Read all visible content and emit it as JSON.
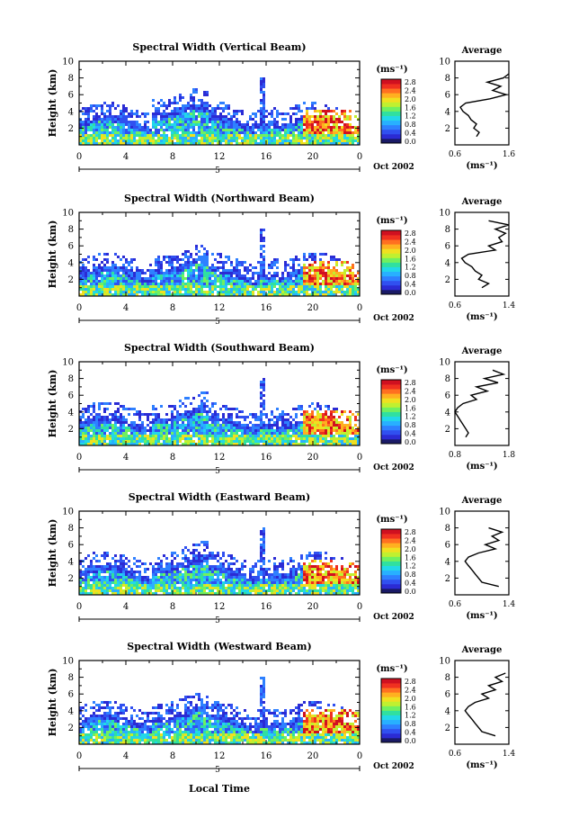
{
  "xlabel": "Local Time",
  "date_label": "Oct 2002",
  "day_marker": "5",
  "avg_title": "Average",
  "colorbar": {
    "unit": "(ms⁻¹)",
    "ticks": [
      "0.0",
      "0.4",
      "0.8",
      "1.2",
      "1.6",
      "2.0",
      "2.4",
      "2.8"
    ],
    "colors": [
      "#1a1a66",
      "#2b2bd4",
      "#3050f0",
      "#2e80ff",
      "#28b0ff",
      "#22d8e8",
      "#30e0a0",
      "#70f060",
      "#c0f030",
      "#f0e020",
      "#ffb020",
      "#ff7020",
      "#f03020",
      "#d01020"
    ]
  },
  "chart_data": [
    {
      "type": "heatmap",
      "title": "Spectral Width (Vertical Beam)",
      "ylabel": "Height (km)",
      "xticks": [
        "0",
        "4",
        "8",
        "12",
        "16",
        "20",
        "0"
      ],
      "yticks": [
        "2",
        "4",
        "6",
        "8",
        "10"
      ],
      "xlim": [
        0,
        24
      ],
      "ylim": [
        0,
        10
      ],
      "profile": {
        "xlabel": "(ms⁻¹)",
        "xticks": [
          "0.6",
          "1.6"
        ],
        "xlim": [
          0.6,
          1.6
        ],
        "yticks": [
          "2",
          "4",
          "6",
          "8",
          "10"
        ],
        "ylim": [
          0,
          10
        ],
        "heights": [
          1,
          1.5,
          2,
          2.5,
          3,
          3.5,
          4,
          4.5,
          5,
          5.5,
          6,
          6.5,
          7,
          7.5,
          8,
          8.5
        ],
        "values": [
          1.0,
          1.05,
          0.95,
          1.0,
          0.9,
          0.85,
          0.75,
          0.7,
          0.8,
          1.25,
          1.55,
          1.3,
          1.45,
          1.2,
          1.5,
          1.6
        ]
      }
    },
    {
      "type": "heatmap",
      "title": "Spectral Width (Northward Beam)",
      "ylabel": "Height (km)",
      "xticks": [
        "0",
        "4",
        "8",
        "12",
        "16",
        "20",
        "0"
      ],
      "yticks": [
        "2",
        "4",
        "6",
        "8",
        "10"
      ],
      "xlim": [
        0,
        24
      ],
      "ylim": [
        0,
        10
      ],
      "profile": {
        "xlabel": "(ms⁻¹)",
        "xticks": [
          "0.6",
          "1.4"
        ],
        "xlim": [
          0.6,
          1.4
        ],
        "yticks": [
          "2",
          "4",
          "6",
          "8",
          "10"
        ],
        "ylim": [
          0,
          10
        ],
        "heights": [
          1,
          1.5,
          2,
          2.5,
          3,
          3.5,
          4,
          4.5,
          5,
          5.5,
          6,
          6.5,
          7,
          7.5,
          8,
          8.5,
          9
        ],
        "values": [
          1.0,
          1.1,
          0.95,
          1.0,
          0.9,
          0.85,
          0.75,
          0.7,
          0.8,
          1.2,
          1.1,
          1.3,
          1.25,
          1.35,
          1.2,
          1.4,
          1.1
        ]
      }
    },
    {
      "type": "heatmap",
      "title": "Spectral Width (Southward Beam)",
      "ylabel": "Height (km)",
      "xticks": [
        "0",
        "4",
        "8",
        "12",
        "16",
        "20",
        "0"
      ],
      "yticks": [
        "2",
        "4",
        "6",
        "8",
        "10"
      ],
      "xlim": [
        0,
        24
      ],
      "ylim": [
        0,
        10
      ],
      "profile": {
        "xlabel": "(ms⁻¹)",
        "xticks": [
          "0.8",
          "1.8"
        ],
        "xlim": [
          0.8,
          1.8
        ],
        "yticks": [
          "2",
          "4",
          "6",
          "8",
          "10"
        ],
        "ylim": [
          0,
          10
        ],
        "heights": [
          1,
          1.5,
          2,
          2.5,
          3,
          3.5,
          4,
          4.5,
          5,
          5.5,
          6,
          6.5,
          7,
          7.5,
          8,
          8.5,
          9
        ],
        "values": [
          1.0,
          1.05,
          1.0,
          0.95,
          0.9,
          0.85,
          0.8,
          0.85,
          0.95,
          1.2,
          1.1,
          1.4,
          1.2,
          1.6,
          1.35,
          1.7,
          1.5
        ]
      }
    },
    {
      "type": "heatmap",
      "title": "Spectral Width (Eastward Beam)",
      "ylabel": "Height (km)",
      "xticks": [
        "0",
        "4",
        "8",
        "12",
        "16",
        "20",
        "0"
      ],
      "yticks": [
        "2",
        "4",
        "6",
        "8",
        "10"
      ],
      "xlim": [
        0,
        24
      ],
      "ylim": [
        0,
        10
      ],
      "profile": {
        "xlabel": "(ms⁻¹)",
        "xticks": [
          "0.6",
          "1.4"
        ],
        "xlim": [
          0.6,
          1.4
        ],
        "yticks": [
          "2",
          "4",
          "6",
          "8",
          "10"
        ],
        "ylim": [
          0,
          10
        ],
        "heights": [
          1,
          1.5,
          2,
          2.5,
          3,
          3.5,
          4,
          4.5,
          5,
          5.5,
          6,
          6.5,
          7,
          7.5,
          8
        ],
        "values": [
          1.25,
          1.0,
          0.95,
          0.9,
          0.85,
          0.8,
          0.75,
          0.8,
          0.95,
          1.2,
          1.05,
          1.25,
          1.15,
          1.3,
          1.1
        ]
      }
    },
    {
      "type": "heatmap",
      "title": "Spectral Width (Westward Beam)",
      "ylabel": "Height (km)",
      "xticks": [
        "0",
        "4",
        "8",
        "12",
        "16",
        "20",
        "0"
      ],
      "yticks": [
        "2",
        "4",
        "6",
        "8",
        "10"
      ],
      "xlim": [
        0,
        24
      ],
      "ylim": [
        0,
        10
      ],
      "profile": {
        "xlabel": "(ms⁻¹)",
        "xticks": [
          "0.6",
          "1.4"
        ],
        "xlim": [
          0.6,
          1.4
        ],
        "yticks": [
          "2",
          "4",
          "6",
          "8",
          "10"
        ],
        "ylim": [
          0,
          10
        ],
        "heights": [
          1,
          1.5,
          2,
          2.5,
          3,
          3.5,
          4,
          4.5,
          5,
          5.5,
          6,
          6.5,
          7,
          7.5,
          8,
          8.5
        ],
        "values": [
          1.2,
          1.0,
          0.95,
          0.9,
          0.85,
          0.8,
          0.75,
          0.8,
          0.9,
          1.1,
          1.0,
          1.2,
          1.1,
          1.3,
          1.2,
          1.35
        ]
      }
    }
  ]
}
